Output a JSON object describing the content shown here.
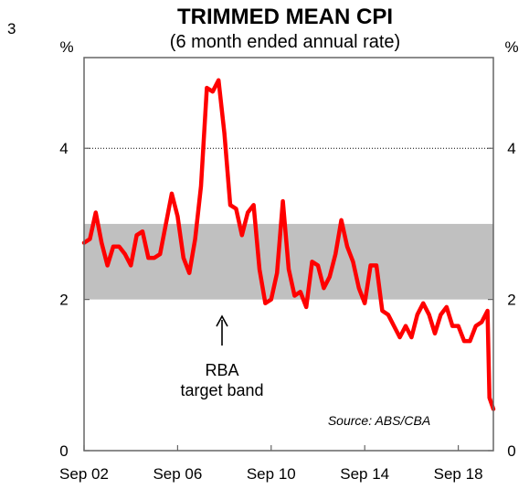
{
  "chart_data": {
    "type": "line",
    "page_number": "3",
    "title": "TRIMMED MEAN CPI",
    "subtitle": "(6 month ended annual rate)",
    "ylabel_left": "%",
    "ylabel_right": "%",
    "ylim": [
      0,
      5.2
    ],
    "y_ticks": [
      0,
      2,
      4
    ],
    "y_tick_labels": [
      "0",
      "2",
      "4"
    ],
    "x_ticks": [
      "Sep 02",
      "Sep 06",
      "Sep 10",
      "Sep 14",
      "Sep 18"
    ],
    "x_range": [
      "2002-09",
      "2020-03"
    ],
    "band": {
      "from": 2,
      "to": 3,
      "color": "#c0c0c0",
      "label_lines": [
        "RBA",
        "target band"
      ]
    },
    "reference_line": {
      "y": 4,
      "style": "dotted"
    },
    "source": "Source: ABS/CBA",
    "series": [
      {
        "color": "#ff0000",
        "points": [
          [
            "2002-09",
            2.75
          ],
          [
            "2002-12",
            2.8
          ],
          [
            "2003-03",
            3.15
          ],
          [
            "2003-06",
            2.75
          ],
          [
            "2003-09",
            2.45
          ],
          [
            "2003-12",
            2.7
          ],
          [
            "2004-03",
            2.7
          ],
          [
            "2004-06",
            2.6
          ],
          [
            "2004-09",
            2.45
          ],
          [
            "2004-12",
            2.85
          ],
          [
            "2005-03",
            2.9
          ],
          [
            "2005-06",
            2.55
          ],
          [
            "2005-09",
            2.55
          ],
          [
            "2005-12",
            2.6
          ],
          [
            "2006-03",
            3.0
          ],
          [
            "2006-06",
            3.4
          ],
          [
            "2006-09",
            3.1
          ],
          [
            "2006-12",
            2.55
          ],
          [
            "2007-03",
            2.35
          ],
          [
            "2007-06",
            2.8
          ],
          [
            "2007-09",
            3.5
          ],
          [
            "2007-12",
            4.8
          ],
          [
            "2008-03",
            4.75
          ],
          [
            "2008-06",
            4.9
          ],
          [
            "2008-09",
            4.2
          ],
          [
            "2008-12",
            3.25
          ],
          [
            "2009-03",
            3.2
          ],
          [
            "2009-06",
            2.85
          ],
          [
            "2009-09",
            3.15
          ],
          [
            "2009-12",
            3.25
          ],
          [
            "2010-03",
            2.4
          ],
          [
            "2010-06",
            1.95
          ],
          [
            "2010-09",
            2.0
          ],
          [
            "2010-12",
            2.35
          ],
          [
            "2011-03",
            3.3
          ],
          [
            "2011-06",
            2.4
          ],
          [
            "2011-09",
            2.05
          ],
          [
            "2011-12",
            2.1
          ],
          [
            "2012-03",
            1.9
          ],
          [
            "2012-06",
            2.5
          ],
          [
            "2012-09",
            2.45
          ],
          [
            "2012-12",
            2.15
          ],
          [
            "2013-03",
            2.3
          ],
          [
            "2013-06",
            2.6
          ],
          [
            "2013-09",
            3.05
          ],
          [
            "2013-12",
            2.7
          ],
          [
            "2014-03",
            2.5
          ],
          [
            "2014-06",
            2.15
          ],
          [
            "2014-09",
            1.95
          ],
          [
            "2014-12",
            2.45
          ],
          [
            "2015-03",
            2.45
          ],
          [
            "2015-06",
            1.85
          ],
          [
            "2015-09",
            1.8
          ],
          [
            "2015-12",
            1.65
          ],
          [
            "2016-03",
            1.5
          ],
          [
            "2016-06",
            1.65
          ],
          [
            "2016-09",
            1.5
          ],
          [
            "2016-12",
            1.8
          ],
          [
            "2017-03",
            1.95
          ],
          [
            "2017-06",
            1.8
          ],
          [
            "2017-09",
            1.55
          ],
          [
            "2017-12",
            1.8
          ],
          [
            "2018-03",
            1.9
          ],
          [
            "2018-06",
            1.65
          ],
          [
            "2018-09",
            1.65
          ],
          [
            "2018-12",
            1.45
          ],
          [
            "2019-03",
            1.45
          ],
          [
            "2019-06",
            1.65
          ],
          [
            "2019-09",
            1.7
          ],
          [
            "2019-12",
            1.85
          ],
          [
            "2020-01",
            0.7
          ],
          [
            "2020-03",
            0.55
          ]
        ]
      }
    ]
  }
}
